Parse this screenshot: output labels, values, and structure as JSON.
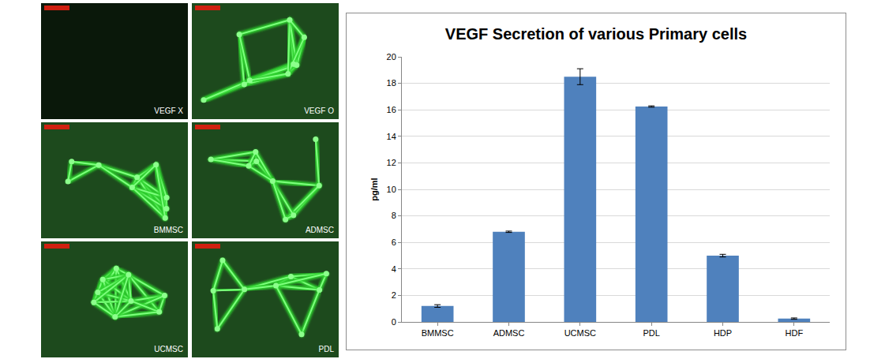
{
  "image_panels": [
    {
      "label": "VEGF X"
    },
    {
      "label": "VEGF O"
    },
    {
      "label": "BMMSC"
    },
    {
      "label": "ADMSC"
    },
    {
      "label": "UCMSC"
    },
    {
      "label": "PDL"
    }
  ],
  "chart_data": {
    "type": "bar",
    "title": "VEGF Secretion of various Primary cells",
    "y_label": "pg/ml",
    "categories": [
      "BMMSC",
      "ADMSC",
      "UCMSC",
      "PDL",
      "HDP",
      "HDF"
    ],
    "values": [
      1.2,
      6.8,
      18.5,
      16.25,
      5.0,
      0.25
    ],
    "errors": [
      0.1,
      0.05,
      0.6,
      0.05,
      0.1,
      0.05
    ],
    "color": "#4f81bd",
    "ylim": [
      0,
      20
    ],
    "yticks": [
      0,
      2,
      4,
      6,
      8,
      10,
      12,
      14,
      16,
      18,
      20
    ],
    "grid": true
  }
}
